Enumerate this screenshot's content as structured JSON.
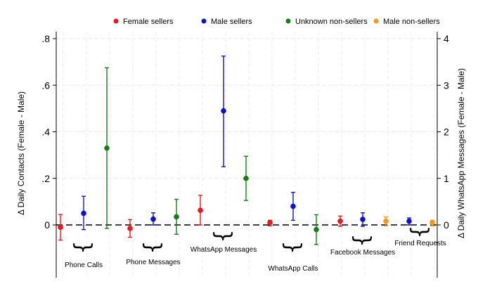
{
  "chart_data": {
    "type": "scatter",
    "style": "point estimates with confidence intervals",
    "ylabel_left": "Δ Daily Contacts (Female - Male)",
    "ylabel_right": "Δ Daily WhatsApp Messages (Female - Male)",
    "ylim_left": [
      -0.2,
      0.8
    ],
    "ylim_right": [
      -1,
      4
    ],
    "yticks_left": [
      0,
      0.2,
      0.4,
      0.6,
      0.8
    ],
    "yticks_left_labels": [
      "0",
      ".2",
      ".4",
      ".6",
      ".8"
    ],
    "yticks_right": [
      0,
      1,
      2,
      3,
      4
    ],
    "yticks_right_labels": [
      "0",
      "1",
      "2",
      "3",
      "4"
    ],
    "reference_line": 0,
    "grid": true,
    "legend_position": "top",
    "legend": [
      {
        "name": "Female sellers",
        "color": "#e41a1c"
      },
      {
        "name": "Male sellers",
        "color": "#1010c8"
      },
      {
        "name": "Unknown non-sellers",
        "color": "#1a7a1a"
      },
      {
        "name": "Male non-sellers",
        "color": "#f5961e"
      }
    ],
    "groups": [
      {
        "label": "Phone Calls",
        "axis": "left",
        "estimates": [
          {
            "series": "Female sellers",
            "value": -0.01,
            "ci": [
              -0.065,
              0.045
            ]
          },
          {
            "series": "Male sellers",
            "value": 0.05,
            "ci": [
              -0.02,
              0.123
            ]
          },
          {
            "series": "Unknown non-sellers",
            "value": 0.33,
            "ci": [
              -0.015,
              0.675
            ]
          }
        ]
      },
      {
        "label": "Phone Messages",
        "axis": "left",
        "estimates": [
          {
            "series": "Female sellers",
            "value": -0.015,
            "ci": [
              -0.053,
              0.023
            ]
          },
          {
            "series": "Male sellers",
            "value": 0.025,
            "ci": [
              0.0,
              0.052
            ]
          },
          {
            "series": "Unknown non-sellers",
            "value": 0.035,
            "ci": [
              -0.04,
              0.11
            ]
          }
        ]
      },
      {
        "label": "WhatsApp Messages",
        "axis": "left",
        "estimates": [
          {
            "series": "Female sellers",
            "value": 0.063,
            "ci": [
              0.0,
              0.127
            ]
          },
          {
            "series": "Male sellers",
            "value": 0.49,
            "ci": [
              0.25,
              0.725
            ]
          },
          {
            "series": "Unknown non-sellers",
            "value": 0.2,
            "ci": [
              0.105,
              0.295
            ]
          }
        ]
      },
      {
        "label": "WhatsApp Calls",
        "axis": "right",
        "estimates": [
          {
            "series": "Female sellers",
            "value": 0.05,
            "ci": [
              -0.02,
              0.1
            ]
          },
          {
            "series": "Male sellers",
            "value": 0.4,
            "ci": [
              0.1,
              0.7
            ]
          },
          {
            "series": "Unknown non-sellers",
            "value": -0.1,
            "ci": [
              -0.42,
              0.22
            ]
          }
        ]
      },
      {
        "label": "Facebook Messages",
        "axis": "right",
        "estimates": [
          {
            "series": "Female sellers",
            "value": 0.08,
            "ci": [
              -0.03,
              0.19
            ]
          },
          {
            "series": "Male sellers",
            "value": 0.12,
            "ci": [
              -0.03,
              0.26
            ]
          },
          {
            "series": "Male non-sellers",
            "value": 0.08,
            "ci": [
              -0.02,
              0.17
            ]
          }
        ]
      },
      {
        "label": "Friend Requests",
        "axis": "right",
        "estimates": [
          {
            "series": "Male sellers",
            "value": 0.08,
            "ci": [
              0.0,
              0.15
            ]
          },
          {
            "series": "Male non-sellers",
            "value": 0.05,
            "ci": [
              -0.02,
              0.1
            ]
          }
        ]
      }
    ]
  }
}
